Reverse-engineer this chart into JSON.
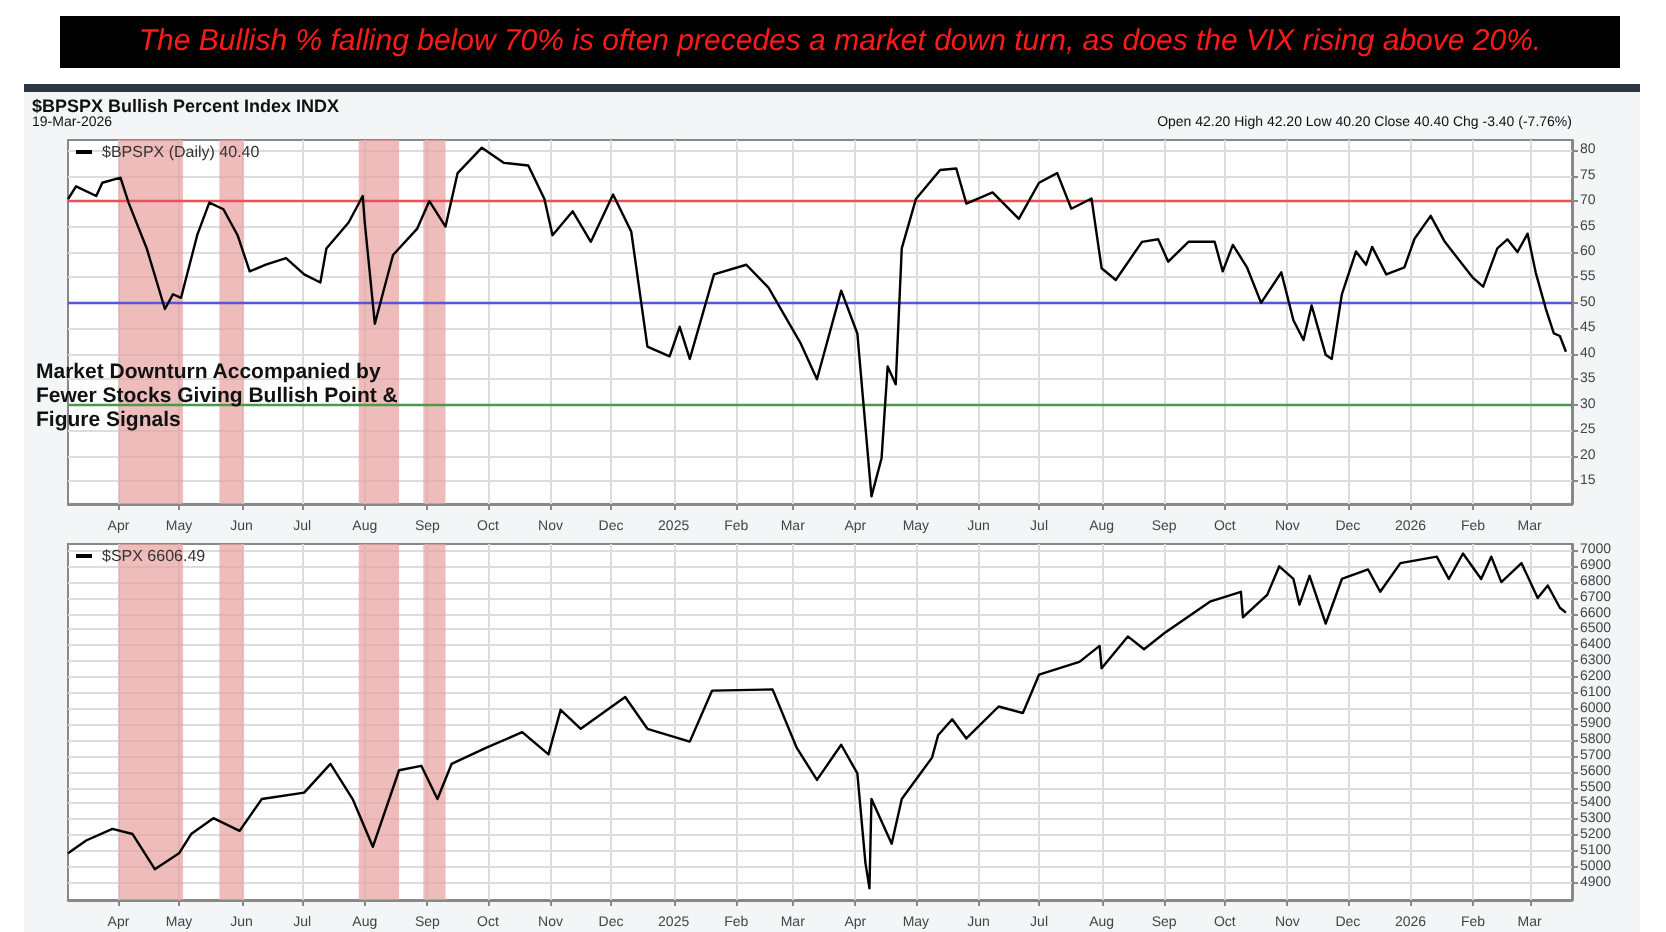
{
  "chart_data": [
    {
      "type": "line",
      "title": "The Bullish % falling below 70% is often precedes a market down turn, as does the VIX rising above 20%.",
      "annotations": [
        "$BPSPX Bullish Percent Index INDX",
        "19-Mar-2026",
        "Open 42.20 High 42.20 Low 40.20 Close 40.40 Chg -3.40 (-7.76%)",
        "Market Downturn Accompanied by Fewer Stocks Giving Bullish Point & Figure Signals"
      ],
      "x": [
        "2024-03-07",
        "2024-03-11",
        "2024-03-21",
        "2024-03-24",
        "2024-04-02",
        "2024-04-06",
        "2024-04-15",
        "2024-04-24",
        "2024-04-28",
        "2024-05-02",
        "2024-05-10",
        "2024-05-16",
        "2024-05-23",
        "2024-05-30",
        "2024-06-05",
        "2024-06-13",
        "2024-06-23",
        "2024-07-02",
        "2024-07-10",
        "2024-07-13",
        "2024-07-24",
        "2024-07-31",
        "2024-08-01",
        "2024-08-06",
        "2024-08-15",
        "2024-08-27",
        "2024-09-02",
        "2024-09-10",
        "2024-09-16",
        "2024-09-28",
        "2024-10-09",
        "2024-10-21",
        "2024-10-29",
        "2024-11-02",
        "2024-11-12",
        "2024-11-21",
        "2024-12-02",
        "2024-12-11",
        "2024-12-19",
        "2024-12-30",
        "2025-01-04",
        "2025-01-09",
        "2025-01-21",
        "2025-02-06",
        "2025-02-17",
        "2025-03-05",
        "2025-03-13",
        "2025-03-25",
        "2025-04-02",
        "2025-04-09",
        "2025-04-14",
        "2025-04-17",
        "2025-04-21",
        "2025-04-24",
        "2025-05-01",
        "2025-05-13",
        "2025-05-21",
        "2025-05-26",
        "2025-06-08",
        "2025-06-21",
        "2025-07-01",
        "2025-07-10",
        "2025-07-17",
        "2025-07-27",
        "2025-08-01",
        "2025-08-08",
        "2025-08-21",
        "2025-08-29",
        "2025-09-03",
        "2025-09-13",
        "2025-09-26",
        "2025-09-30",
        "2025-10-05",
        "2025-10-12",
        "2025-10-19",
        "2025-10-29",
        "2025-11-04",
        "2025-11-09",
        "2025-11-13",
        "2025-11-20",
        "2025-11-23",
        "2025-11-28",
        "2025-12-05",
        "2025-12-10",
        "2025-12-13",
        "2025-12-20",
        "2025-12-29",
        "2026-01-03",
        "2026-01-11",
        "2026-01-18",
        "2026-02-01",
        "2026-02-06",
        "2026-02-13",
        "2026-02-18",
        "2026-02-23",
        "2026-02-28",
        "2026-03-04",
        "2026-03-09",
        "2026-03-13",
        "2026-03-16",
        "2026-03-19"
      ],
      "series": [
        {
          "name": "$BPSPX (Daily) 40.40",
          "color": "#000000",
          "values": [
            70.4,
            72.9,
            71,
            73.6,
            74.6,
            69.7,
            60.7,
            48.8,
            51.7,
            51,
            63.3,
            69.7,
            68.4,
            63.3,
            56.2,
            57.5,
            58.8,
            55.6,
            54,
            60.7,
            65.8,
            71,
            65.8,
            45.9,
            59.4,
            64.6,
            70,
            65,
            75.5,
            80.5,
            77.5,
            77,
            70.4,
            63.3,
            68,
            62,
            71.3,
            64,
            41.4,
            39.5,
            45.3,
            39,
            55.6,
            57.5,
            53,
            42,
            35,
            52.4,
            44,
            12,
            19.5,
            37.5,
            34,
            60.7,
            70.4,
            76.1,
            76.4,
            69.5,
            71.7,
            66.5,
            73.6,
            75.5,
            68.5,
            70.5,
            56.8,
            54.5,
            62,
            62.5,
            58.1,
            62,
            62,
            56.2,
            61.4,
            57,
            50,
            56,
            46.6,
            42.7,
            49.5,
            39.8,
            39,
            51.7,
            60.1,
            57.5,
            61,
            55.6,
            57,
            62.6,
            67.1,
            62,
            54.9,
            53.2,
            60.7,
            62.5,
            60,
            63.6,
            56,
            48.9,
            44,
            43.5,
            40.4
          ]
        }
      ],
      "xlim": [
        "2024-03-07",
        "2026-03-22"
      ],
      "xticks": [
        {
          "value": "2024-04-01",
          "label": "Apr"
        },
        {
          "value": "2024-05-01",
          "label": "May"
        },
        {
          "value": "2024-06-01",
          "label": "Jun"
        },
        {
          "value": "2024-07-01",
          "label": "Jul"
        },
        {
          "value": "2024-08-01",
          "label": "Aug"
        },
        {
          "value": "2024-09-01",
          "label": "Sep"
        },
        {
          "value": "2024-10-01",
          "label": "Oct"
        },
        {
          "value": "2024-11-01",
          "label": "Nov"
        },
        {
          "value": "2024-12-01",
          "label": "Dec"
        },
        {
          "value": "2025-01-01",
          "label": "2025"
        },
        {
          "value": "2025-02-01",
          "label": "Feb"
        },
        {
          "value": "2025-03-01",
          "label": "Mar"
        },
        {
          "value": "2025-04-01",
          "label": "Apr"
        },
        {
          "value": "2025-05-01",
          "label": "May"
        },
        {
          "value": "2025-06-01",
          "label": "Jun"
        },
        {
          "value": "2025-07-01",
          "label": "Jul"
        },
        {
          "value": "2025-08-01",
          "label": "Aug"
        },
        {
          "value": "2025-09-01",
          "label": "Sep"
        },
        {
          "value": "2025-10-01",
          "label": "Oct"
        },
        {
          "value": "2025-11-01",
          "label": "Nov"
        },
        {
          "value": "2025-12-01",
          "label": "Dec"
        },
        {
          "value": "2026-01-01",
          "label": "2026"
        },
        {
          "value": "2026-02-01",
          "label": "Feb"
        },
        {
          "value": "2026-03-01",
          "label": "Mar"
        }
      ],
      "ylim": [
        10.5,
        82
      ],
      "yticks": [
        15,
        20,
        25,
        30,
        35,
        40,
        45,
        50,
        55,
        60,
        65,
        70,
        75,
        80
      ],
      "ref_lines": [
        {
          "axis": "y",
          "value": 70,
          "color": "#e8505b"
        },
        {
          "axis": "y",
          "value": 50,
          "color": "#5555dd"
        },
        {
          "axis": "y",
          "value": 30,
          "color": "#4a9a4a"
        }
      ],
      "bands": [
        {
          "axis": "x",
          "from": "2024-04-01",
          "to": "2024-05-03",
          "color": "#e8a0a0"
        },
        {
          "axis": "x",
          "from": "2024-05-21",
          "to": "2024-06-02",
          "color": "#e8a0a0"
        },
        {
          "axis": "x",
          "from": "2024-07-29",
          "to": "2024-08-18",
          "color": "#e8a0a0"
        },
        {
          "axis": "x",
          "from": "2024-08-30",
          "to": "2024-09-10",
          "color": "#e8a0a0"
        }
      ],
      "grid": true,
      "legend": "top left"
    },
    {
      "type": "line",
      "x": [
        "2024-03-07",
        "2024-03-16",
        "2024-03-29",
        "2024-04-08",
        "2024-04-19",
        "2024-05-01",
        "2024-05-07",
        "2024-05-18",
        "2024-05-31",
        "2024-06-11",
        "2024-07-02",
        "2024-07-15",
        "2024-07-26",
        "2024-08-05",
        "2024-08-18",
        "2024-08-29",
        "2024-09-06",
        "2024-09-13",
        "2024-09-30",
        "2024-10-18",
        "2024-10-31",
        "2024-11-06",
        "2024-11-16",
        "2024-12-08",
        "2024-12-19",
        "2025-01-09",
        "2025-01-20",
        "2025-02-19",
        "2025-03-03",
        "2025-03-13",
        "2025-03-25",
        "2025-04-02",
        "2025-04-06",
        "2025-04-08",
        "2025-04-09",
        "2025-04-19",
        "2025-04-24",
        "2025-05-09",
        "2025-05-12",
        "2025-05-19",
        "2025-05-26",
        "2025-06-11",
        "2025-06-23",
        "2025-07-01",
        "2025-07-21",
        "2025-07-31",
        "2025-08-01",
        "2025-08-14",
        "2025-08-22",
        "2025-09-01",
        "2025-09-24",
        "2025-10-09",
        "2025-10-10",
        "2025-10-22",
        "2025-10-28",
        "2025-11-04",
        "2025-11-07",
        "2025-11-12",
        "2025-11-20",
        "2025-11-28",
        "2025-12-11",
        "2025-12-17",
        "2025-12-27",
        "2026-01-14",
        "2026-01-20",
        "2026-01-27",
        "2026-02-05",
        "2026-02-10",
        "2026-02-15",
        "2026-02-25",
        "2026-03-05",
        "2026-03-10",
        "2026-03-16",
        "2026-03-19"
      ],
      "series": [
        {
          "name": "$SPX 6606.49",
          "color": "#000000",
          "values": [
            5085,
            5166,
            5239,
            5207,
            4985,
            5085,
            5207,
            5307,
            5227,
            5428,
            5469,
            5650,
            5428,
            5126,
            5610,
            5638,
            5428,
            5650,
            5751,
            5851,
            5710,
            5992,
            5872,
            6073,
            5872,
            5791,
            6113,
            6121,
            5751,
            5549,
            5771,
            5590,
            5025,
            4864,
            5428,
            5146,
            5428,
            5690,
            5831,
            5932,
            5811,
            6013,
            5972,
            6214,
            6295,
            6396,
            6254,
            6456,
            6375,
            6476,
            6678,
            6738,
            6577,
            6718,
            6899,
            6819,
            6657,
            6839,
            6537,
            6819,
            6879,
            6738,
            6919,
            6960,
            6819,
            6980,
            6819,
            6960,
            6799,
            6919,
            6698,
            6778,
            6637,
            6606.49
          ]
        }
      ],
      "xlim": [
        "2024-03-07",
        "2026-03-22"
      ],
      "xticks": [
        {
          "value": "2024-04-01",
          "label": "Apr"
        },
        {
          "value": "2024-05-01",
          "label": "May"
        },
        {
          "value": "2024-06-01",
          "label": "Jun"
        },
        {
          "value": "2024-07-01",
          "label": "Jul"
        },
        {
          "value": "2024-08-01",
          "label": "Aug"
        },
        {
          "value": "2024-09-01",
          "label": "Sep"
        },
        {
          "value": "2024-10-01",
          "label": "Oct"
        },
        {
          "value": "2024-11-01",
          "label": "Nov"
        },
        {
          "value": "2024-12-01",
          "label": "Dec"
        },
        {
          "value": "2025-01-01",
          "label": "2025"
        },
        {
          "value": "2025-02-01",
          "label": "Feb"
        },
        {
          "value": "2025-03-01",
          "label": "Mar"
        },
        {
          "value": "2025-04-01",
          "label": "Apr"
        },
        {
          "value": "2025-05-01",
          "label": "May"
        },
        {
          "value": "2025-06-01",
          "label": "Jun"
        },
        {
          "value": "2025-07-01",
          "label": "Jul"
        },
        {
          "value": "2025-08-01",
          "label": "Aug"
        },
        {
          "value": "2025-09-01",
          "label": "Sep"
        },
        {
          "value": "2025-10-01",
          "label": "Oct"
        },
        {
          "value": "2025-11-01",
          "label": "Nov"
        },
        {
          "value": "2025-12-01",
          "label": "Dec"
        },
        {
          "value": "2026-01-01",
          "label": "2026"
        },
        {
          "value": "2026-02-01",
          "label": "Feb"
        },
        {
          "value": "2026-03-01",
          "label": "Mar"
        }
      ],
      "ylim": [
        4790,
        7040
      ],
      "yticks": [
        4900,
        5000,
        5100,
        5200,
        5300,
        5400,
        5500,
        5600,
        5700,
        5800,
        5900,
        6000,
        6100,
        6200,
        6300,
        6400,
        6500,
        6600,
        6700,
        6800,
        6900,
        7000
      ],
      "bands": [
        {
          "axis": "x",
          "from": "2024-04-01",
          "to": "2024-05-03",
          "color": "#e8a0a0"
        },
        {
          "axis": "x",
          "from": "2024-05-21",
          "to": "2024-06-02",
          "color": "#e8a0a0"
        },
        {
          "axis": "x",
          "from": "2024-07-29",
          "to": "2024-08-18",
          "color": "#e8a0a0"
        },
        {
          "axis": "x",
          "from": "2024-08-30",
          "to": "2024-09-10",
          "color": "#e8a0a0"
        }
      ],
      "grid": true,
      "legend": "top left"
    }
  ]
}
